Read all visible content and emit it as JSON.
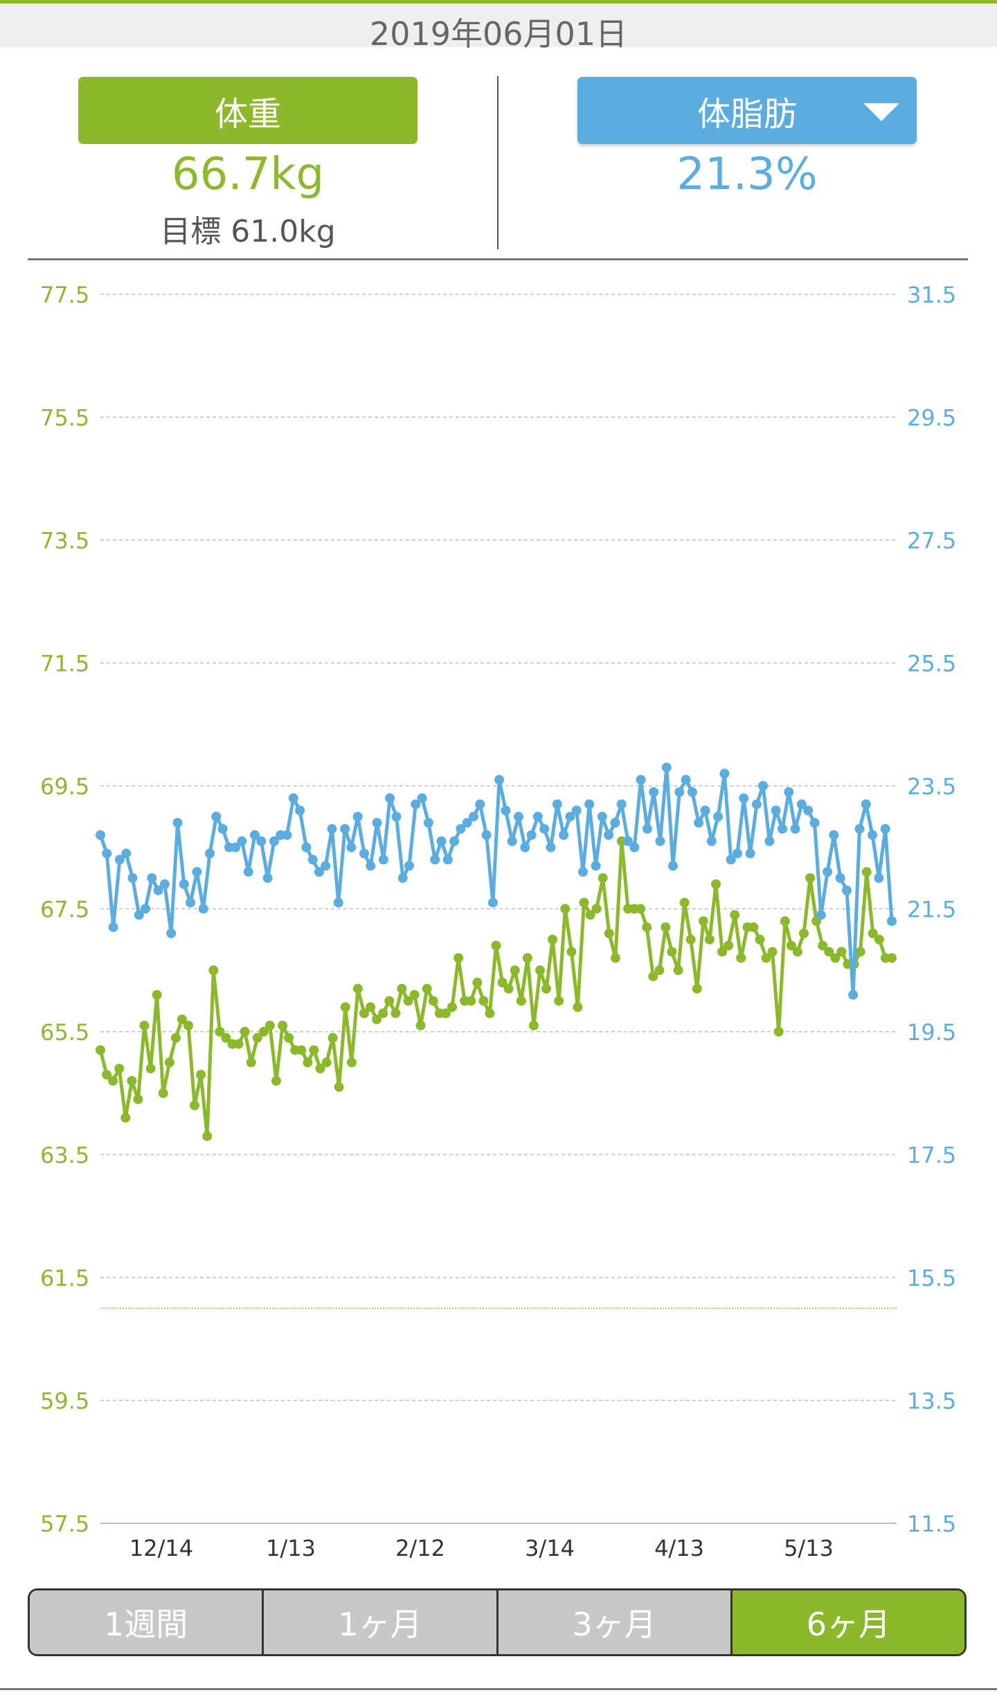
{
  "header": {
    "date": "2019年06月01日"
  },
  "summary": {
    "weight": {
      "label": "体重",
      "value": "66.7kg",
      "goal": "目標 61.0kg"
    },
    "bodyfat": {
      "label": "体脂肪",
      "value": "21.3%"
    }
  },
  "tabs": [
    {
      "label": "1週間",
      "active": false
    },
    {
      "label": "1ヶ月",
      "active": false
    },
    {
      "label": "3ヶ月",
      "active": false
    },
    {
      "label": "6ヶ月",
      "active": true
    }
  ],
  "colors": {
    "weight": "#8cb92b",
    "bodyfat": "#5aadde",
    "grid": "#bfbfbf"
  },
  "chart_data": {
    "type": "line",
    "x_tick_labels": [
      "12/14",
      "1/13",
      "2/12",
      "3/14",
      "4/13",
      "5/13"
    ],
    "left_axis": {
      "min": 57.5,
      "max": 77.5,
      "ticks": [
        "77.5",
        "75.5",
        "73.5",
        "71.5",
        "69.5",
        "67.5",
        "65.5",
        "63.5",
        "61.5",
        "59.5",
        "57.5"
      ]
    },
    "right_axis": {
      "min": 11.5,
      "max": 31.5,
      "ticks": [
        "31.5",
        "29.5",
        "27.5",
        "25.5",
        "23.5",
        "21.5",
        "19.5",
        "17.5",
        "15.5",
        "13.5",
        "11.5"
      ]
    },
    "goal_line": 61.0,
    "grid": true,
    "series": [
      {
        "key": "weight",
        "axis": "left",
        "values": [
          65.2,
          64.8,
          64.7,
          64.9,
          64.1,
          64.7,
          64.4,
          65.6,
          64.9,
          66.1,
          64.5,
          65.0,
          65.4,
          65.7,
          65.6,
          64.3,
          64.8,
          63.8,
          66.5,
          65.5,
          65.4,
          65.3,
          65.3,
          65.5,
          65.0,
          65.4,
          65.5,
          65.6,
          64.7,
          65.6,
          65.4,
          65.2,
          65.2,
          65.0,
          65.2,
          64.9,
          65.0,
          65.4,
          64.6,
          65.9,
          65.0,
          66.2,
          65.8,
          65.9,
          65.7,
          65.8,
          66.0,
          65.8,
          66.2,
          66.0,
          66.1,
          65.6,
          66.2,
          66.0,
          65.8,
          65.8,
          65.9,
          66.7,
          66.0,
          66.0,
          66.3,
          66.0,
          65.8,
          66.9,
          66.3,
          66.2,
          66.5,
          66.0,
          66.7,
          65.6,
          66.5,
          66.2,
          67.0,
          66.0,
          67.5,
          66.8,
          65.9,
          67.6,
          67.4,
          67.5,
          68.0,
          67.1,
          66.7,
          68.6,
          67.5,
          67.5,
          67.5,
          67.2,
          66.4,
          66.5,
          67.2,
          66.8,
          66.5,
          67.6,
          67.0,
          66.2,
          67.3,
          67.0,
          67.9,
          66.8,
          66.9,
          67.4,
          66.7,
          67.2,
          67.2,
          67.0,
          66.7,
          66.8,
          65.5,
          67.3,
          66.9,
          66.8,
          67.1,
          68.0,
          67.3,
          66.9,
          66.8,
          66.7,
          66.8,
          66.6,
          66.6,
          66.8,
          68.1,
          67.1,
          67.0,
          66.7,
          66.7
        ],
        "last": 66.7
      },
      {
        "key": "bodyfat",
        "axis": "right",
        "values": [
          22.7,
          22.4,
          21.2,
          22.3,
          22.4,
          22.0,
          21.4,
          21.5,
          22.0,
          21.8,
          21.9,
          21.1,
          22.9,
          21.9,
          21.6,
          22.1,
          21.5,
          22.4,
          23.0,
          22.8,
          22.5,
          22.5,
          22.6,
          22.1,
          22.7,
          22.6,
          22.0,
          22.6,
          22.7,
          22.7,
          23.3,
          23.1,
          22.5,
          22.3,
          22.1,
          22.2,
          22.8,
          21.6,
          22.8,
          22.5,
          23.0,
          22.4,
          22.2,
          22.9,
          22.3,
          23.3,
          23.0,
          22.0,
          22.2,
          23.2,
          23.3,
          22.9,
          22.3,
          22.6,
          22.3,
          22.6,
          22.8,
          22.9,
          23.0,
          23.2,
          22.7,
          21.6,
          23.6,
          23.1,
          22.6,
          23.0,
          22.5,
          22.7,
          23.0,
          22.8,
          22.5,
          23.2,
          22.7,
          23.0,
          23.1,
          22.1,
          23.2,
          22.2,
          23.0,
          22.7,
          22.9,
          23.2,
          22.6,
          22.5,
          23.6,
          22.8,
          23.4,
          22.6,
          23.8,
          22.2,
          23.4,
          23.6,
          23.4,
          22.9,
          23.1,
          22.6,
          23.0,
          23.7,
          22.3,
          22.4,
          23.3,
          22.4,
          23.2,
          23.5,
          22.6,
          23.1,
          22.8,
          23.4,
          22.8,
          23.2,
          23.1,
          22.9,
          21.4,
          22.1,
          22.7,
          22.0,
          21.8,
          20.1,
          22.8,
          23.2,
          22.7,
          22.0,
          22.8,
          21.3
        ],
        "last": 21.3
      }
    ]
  }
}
